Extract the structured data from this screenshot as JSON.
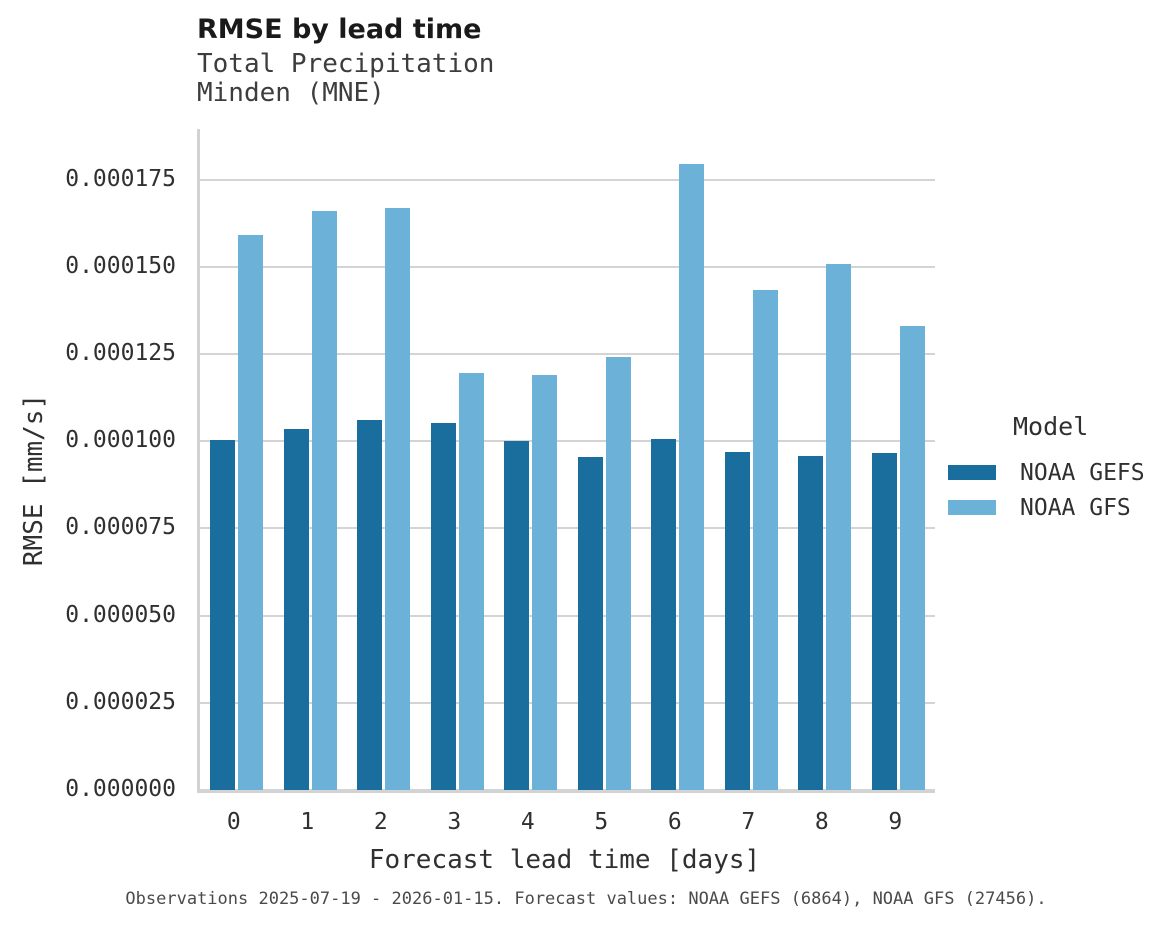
{
  "header": {
    "title": "RMSE by lead time",
    "subtitle": "Total Precipitation\nMinden (MNE)"
  },
  "chart_data": {
    "type": "bar",
    "title": "RMSE by lead time",
    "subtitle_lines": [
      "Total Precipitation",
      "Minden (MNE)"
    ],
    "xlabel": "Forecast lead time [days]",
    "ylabel": "RMSE [mm/s]",
    "categories": [
      "0",
      "1",
      "2",
      "3",
      "4",
      "5",
      "6",
      "7",
      "8",
      "9"
    ],
    "series": [
      {
        "name": "NOAA GEFS",
        "color": "#1a6e9e",
        "values": [
          0.0001004,
          0.0001034,
          0.0001062,
          0.0001051,
          0.0001001,
          9.56e-05,
          0.0001007,
          9.68e-05,
          9.58e-05,
          9.65e-05
        ]
      },
      {
        "name": "NOAA GFS",
        "color": "#6cb2d8",
        "values": [
          0.000159,
          0.0001659,
          0.0001668,
          0.0001196,
          0.000119,
          0.000124,
          0.0001796,
          0.0001434,
          0.0001509,
          0.0001331
        ]
      }
    ],
    "ylim": [
      0,
      0.0001895
    ],
    "yticks": {
      "values": [
        0.0,
        2.5e-05,
        5e-05,
        7.5e-05,
        0.0001,
        0.000125,
        0.00015,
        0.000175
      ],
      "labels": [
        "0.000000",
        "0.000025",
        "0.000050",
        "0.000075",
        "0.000100",
        "0.000125",
        "0.000150",
        "0.000175"
      ]
    },
    "grid": "horizontal",
    "legend": {
      "title": "Model",
      "position": "right"
    },
    "caption": "Observations 2025-07-19 - 2026-01-15. Forecast values: NOAA GEFS (6864), NOAA GFS (27456)."
  },
  "colors": {
    "gridline": "#d4d4d4",
    "spine": "#d2d2d2",
    "background": "#ffffff"
  }
}
